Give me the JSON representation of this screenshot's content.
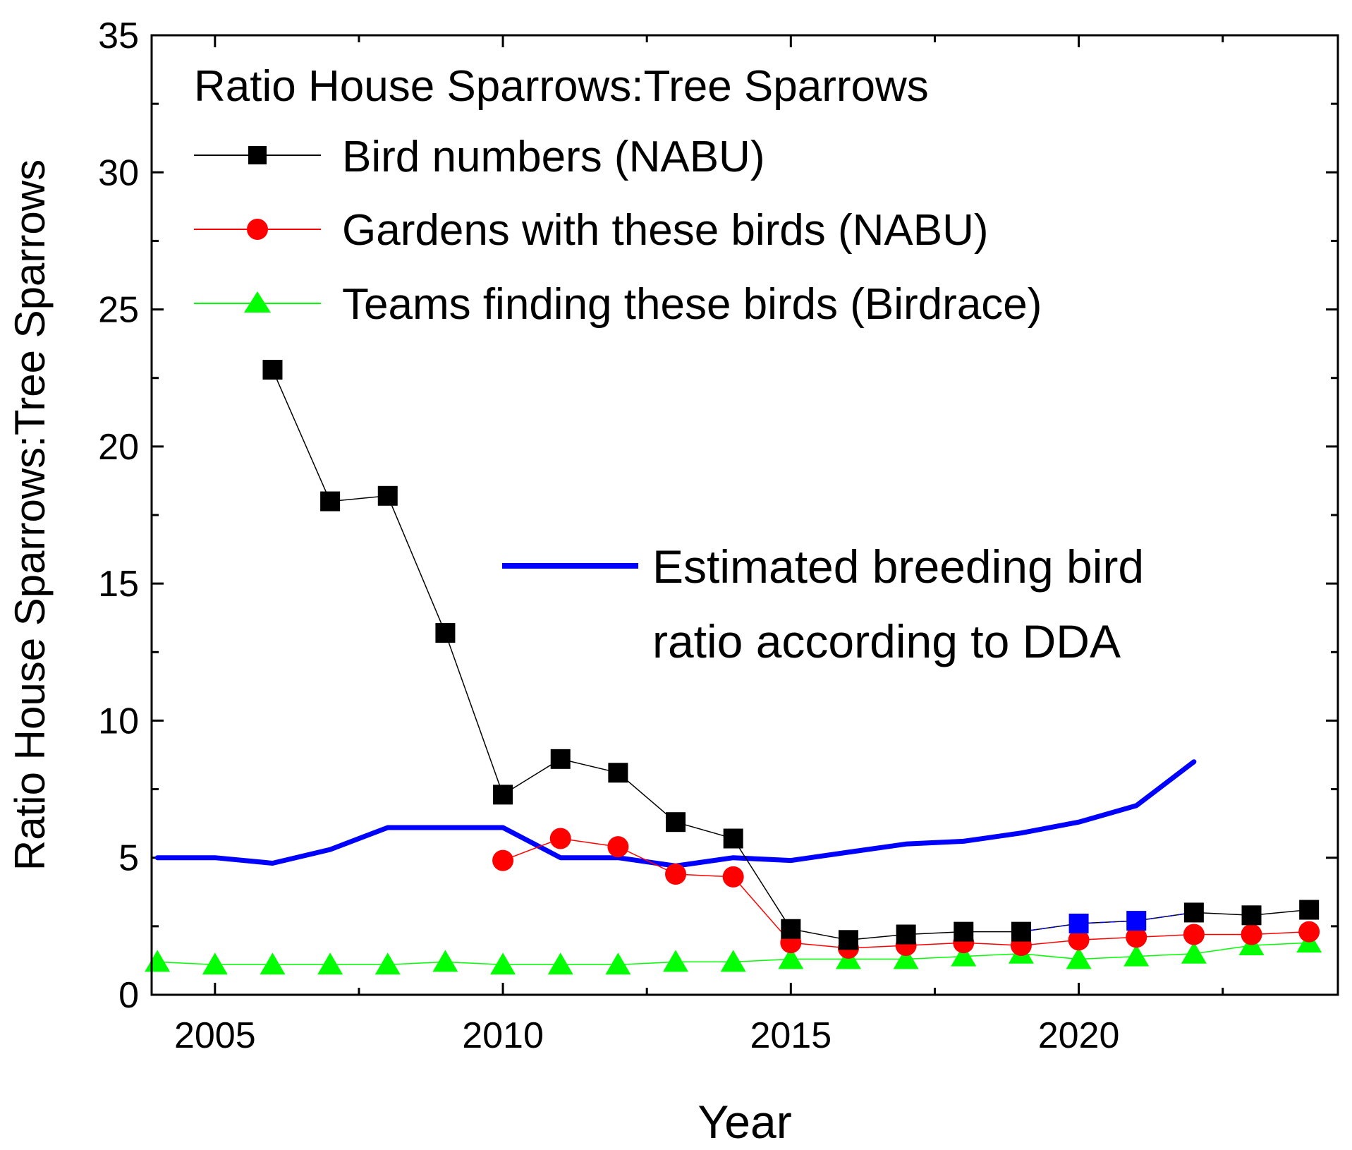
{
  "chart_data": {
    "type": "line",
    "title": "",
    "xlabel": "Year",
    "ylabel": "Ratio House Sparrows:Tree Sparrows",
    "xlim": [
      2003.9,
      2024.5
    ],
    "ylim": [
      0,
      35
    ],
    "xticks_major": [
      2005,
      2010,
      2015,
      2020
    ],
    "xticks_minor": [
      2005,
      2007.5,
      2010,
      2012.5,
      2015,
      2017.5,
      2020,
      2022.5
    ],
    "yticks_major": [
      0,
      5,
      10,
      15,
      20,
      25,
      30,
      35
    ],
    "yticks_minor": [
      2.5,
      7.5,
      12.5,
      17.5,
      22.5,
      27.5,
      32.5
    ],
    "grid": false,
    "legend": {
      "title": "Ratio House Sparrows:Tree Sparrows",
      "placement": "top-left"
    },
    "series": [
      {
        "name": "Bird numbers (NABU)",
        "color": "#000000",
        "marker": "square",
        "x": [
          2006,
          2007,
          2008,
          2009,
          2010,
          2011,
          2012,
          2013,
          2014,
          2015,
          2016,
          2017,
          2018,
          2019,
          2020,
          2021,
          2022,
          2023,
          2024
        ],
        "values": [
          22.8,
          18.0,
          18.2,
          13.2,
          7.3,
          8.6,
          8.1,
          6.3,
          5.7,
          2.4,
          2.0,
          2.2,
          2.3,
          2.3,
          2.6,
          2.7,
          3.0,
          2.9,
          3.1
        ]
      },
      {
        "name": "Gardens with these birds (NABU)",
        "color": "#ff0000",
        "marker": "circle",
        "x": [
          2010,
          2011,
          2012,
          2013,
          2014,
          2015,
          2016,
          2017,
          2018,
          2019,
          2020,
          2021,
          2022,
          2023,
          2024
        ],
        "values": [
          4.9,
          5.7,
          5.4,
          4.4,
          4.3,
          1.9,
          1.7,
          1.8,
          1.9,
          1.8,
          2.0,
          2.1,
          2.2,
          2.2,
          2.3
        ]
      },
      {
        "name": "Teams finding these birds (Birdrace)",
        "color": "#00ff00",
        "marker": "triangle",
        "x": [
          2004,
          2005,
          2006,
          2007,
          2008,
          2009,
          2010,
          2011,
          2012,
          2013,
          2014,
          2015,
          2016,
          2017,
          2018,
          2019,
          2020,
          2021,
          2022,
          2023,
          2024
        ],
        "values": [
          1.2,
          1.1,
          1.1,
          1.1,
          1.1,
          1.2,
          1.1,
          1.1,
          1.1,
          1.2,
          1.2,
          1.3,
          1.3,
          1.3,
          1.4,
          1.5,
          1.3,
          1.4,
          1.5,
          1.8,
          1.9
        ]
      },
      {
        "name": "Estimated breeding bird ratio according to DDA",
        "color": "#0000ff",
        "marker": "none",
        "x": [
          2004,
          2005,
          2006,
          2007,
          2008,
          2009,
          2010,
          2011,
          2012,
          2013,
          2014,
          2015,
          2016,
          2017,
          2018,
          2019,
          2020,
          2021,
          2022
        ],
        "values": [
          5.0,
          5.0,
          4.8,
          5.3,
          6.1,
          6.1,
          6.1,
          5.0,
          5.0,
          4.7,
          5.0,
          4.9,
          5.2,
          5.5,
          5.6,
          5.9,
          6.3,
          6.9,
          8.5
        ]
      }
    ],
    "extra_markers": {
      "color": "#0000ff",
      "marker": "square",
      "x": [
        2020,
        2021
      ],
      "values": [
        2.6,
        2.7
      ]
    },
    "annotation": {
      "line1": "Estimated breeding bird",
      "line2": "ratio according to DDA"
    }
  }
}
